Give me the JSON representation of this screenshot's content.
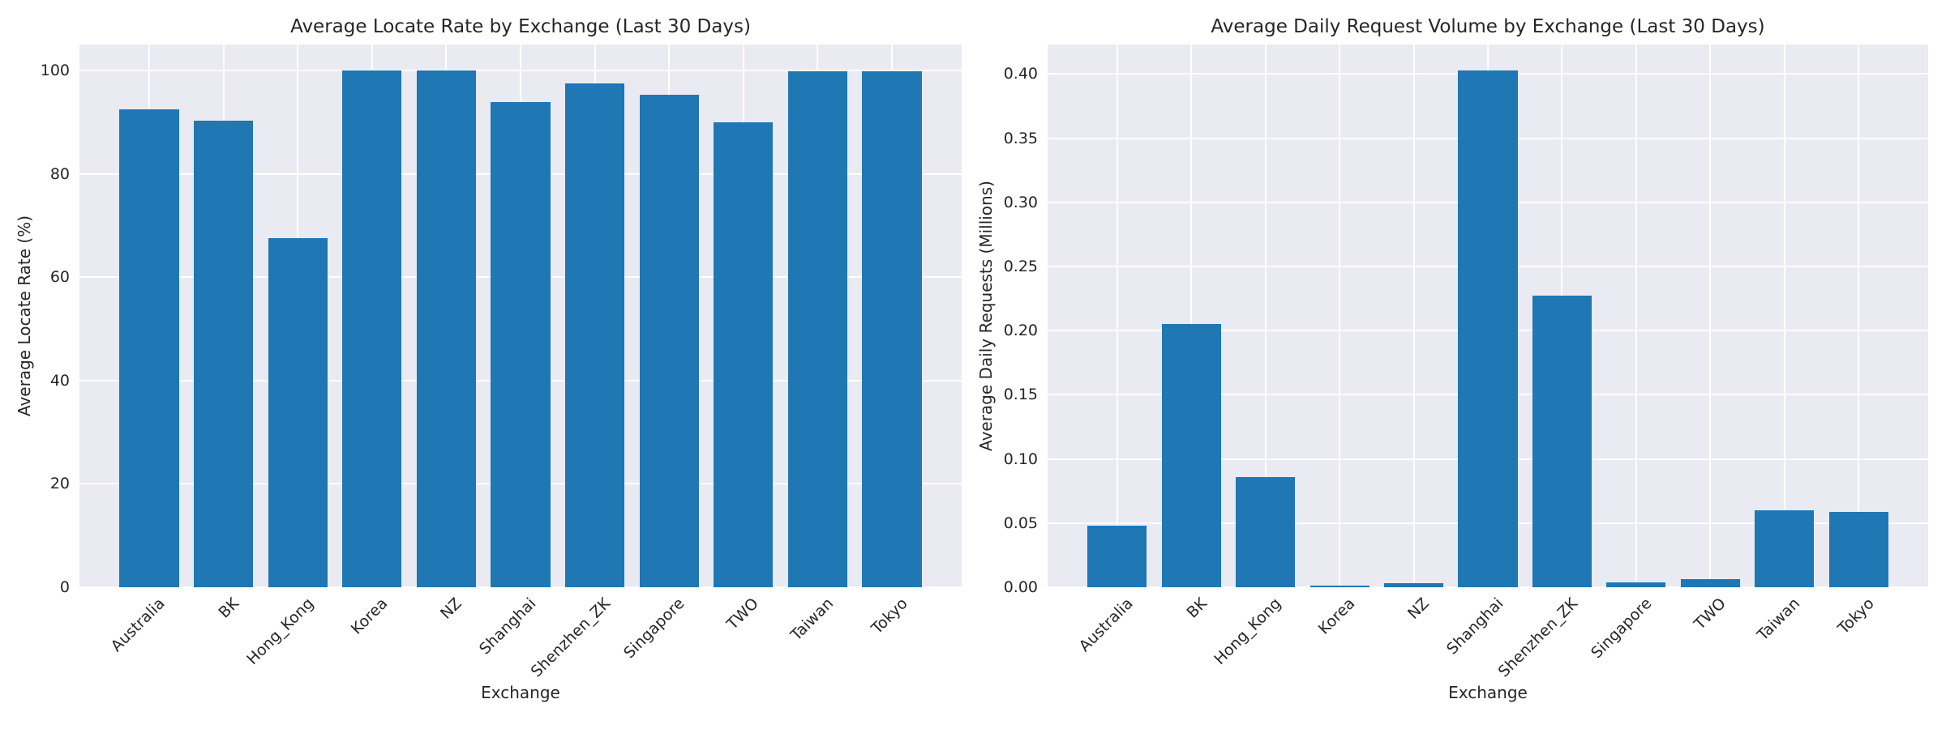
{
  "figure": {
    "background_color": "#ffffff",
    "plot_background_color": "#eaeaf2",
    "grid_color": "#ffffff",
    "bar_color": "#1f77b4",
    "text_color": "#262626"
  },
  "chart_data": [
    {
      "type": "bar",
      "title": "Average Locate Rate by Exchange (Last 30 Days)",
      "xlabel": "Exchange",
      "ylabel": "Average Locate Rate (%)",
      "categories": [
        "Australia",
        "BK",
        "Hong_Kong",
        "Korea",
        "NZ",
        "Shanghai",
        "Shenzhen_ZK",
        "Singapore",
        "TWO",
        "Taiwan",
        "Tokyo"
      ],
      "values": [
        92.4,
        90.3,
        67.5,
        100.0,
        100.0,
        93.9,
        97.4,
        95.3,
        89.9,
        99.8,
        99.8
      ],
      "ylim": [
        0,
        105
      ],
      "yticks": [
        0,
        20,
        40,
        60,
        80,
        100
      ],
      "ytick_labels": [
        "0",
        "20",
        "40",
        "60",
        "80",
        "100"
      ],
      "xtick_rotation_deg": 45,
      "grid": "on",
      "legend": "none"
    },
    {
      "type": "bar",
      "title": "Average Daily Request Volume by Exchange (Last 30 Days)",
      "xlabel": "Exchange",
      "ylabel": "Average Daily Requests (Millions)",
      "categories": [
        "Australia",
        "BK",
        "Hong_Kong",
        "Korea",
        "NZ",
        "Shanghai",
        "Shenzhen_ZK",
        "Singapore",
        "TWO",
        "Taiwan",
        "Tokyo"
      ],
      "values": [
        0.048,
        0.205,
        0.086,
        0.001,
        0.003,
        0.403,
        0.227,
        0.004,
        0.006,
        0.06,
        0.059
      ],
      "ylim": [
        0,
        0.423
      ],
      "yticks": [
        0.0,
        0.05,
        0.1,
        0.15,
        0.2,
        0.25,
        0.3,
        0.35,
        0.4
      ],
      "ytick_labels": [
        "0.00",
        "0.05",
        "0.10",
        "0.15",
        "0.20",
        "0.25",
        "0.30",
        "0.35",
        "0.40"
      ],
      "xtick_rotation_deg": 45,
      "grid": "on",
      "legend": "none"
    }
  ]
}
